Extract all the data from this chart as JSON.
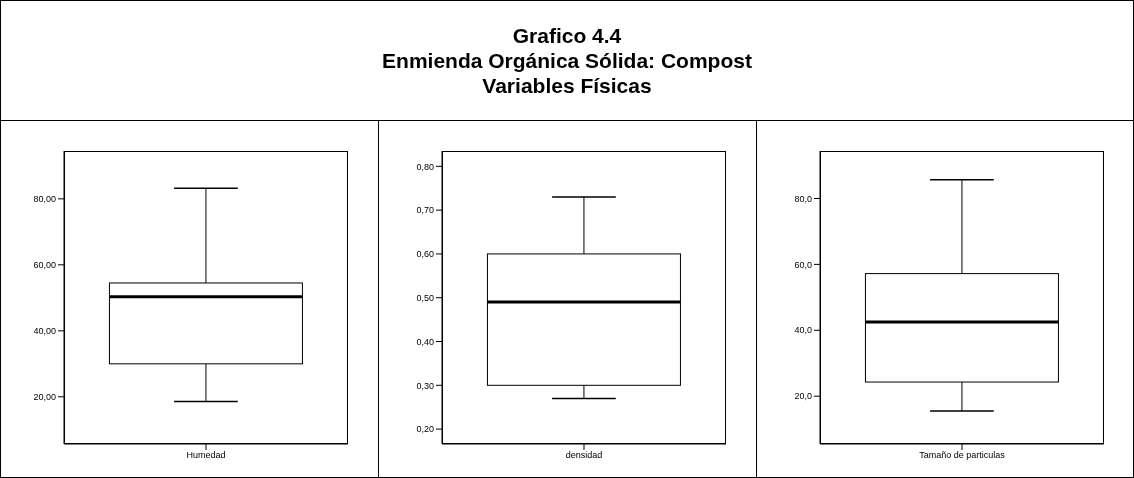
{
  "chart_data": [
    {
      "type": "box",
      "categories": [
        "Humedad"
      ],
      "boxes": [
        {
          "low": 18.6,
          "q1": 30,
          "median": 50.3,
          "q3": 54.5,
          "high": 83.2
        }
      ],
      "ylim": [
        5.7,
        94.5
      ],
      "yticks": [
        {
          "value": 20,
          "label": "20,00"
        },
        {
          "value": 40,
          "label": "40,00"
        },
        {
          "value": 60,
          "label": "60,00"
        },
        {
          "value": 80,
          "label": "80,00"
        }
      ]
    },
    {
      "type": "box",
      "title": "Grafico 4.4\nEnmienda Orgánica Sólida: Compost\nVariables Físicas",
      "categories": [
        "densidad"
      ],
      "boxes": [
        {
          "low": 0.27,
          "q1": 0.3,
          "median": 0.49,
          "q3": 0.6,
          "high": 0.73
        }
      ],
      "ylim": [
        0.166,
        0.835
      ],
      "yticks": [
        {
          "value": 0.2,
          "label": "0,20"
        },
        {
          "value": 0.3,
          "label": "0,30"
        },
        {
          "value": 0.4,
          "label": "0,40"
        },
        {
          "value": 0.5,
          "label": "0,50"
        },
        {
          "value": 0.6,
          "label": "0,60"
        },
        {
          "value": 0.7,
          "label": "0,70"
        },
        {
          "value": 0.8,
          "label": "0,80"
        }
      ]
    },
    {
      "type": "box",
      "categories": [
        "Tamaño de particulas"
      ],
      "boxes": [
        {
          "low": 15.5,
          "q1": 24.3,
          "median": 42.5,
          "q3": 57.2,
          "high": 85.7
        }
      ],
      "ylim": [
        5.5,
        94.4
      ],
      "yticks": [
        {
          "value": 20,
          "label": "20,0"
        },
        {
          "value": 40,
          "label": "40,0"
        },
        {
          "value": 60,
          "label": "60,0"
        },
        {
          "value": 80,
          "label": "80,0"
        }
      ]
    }
  ]
}
